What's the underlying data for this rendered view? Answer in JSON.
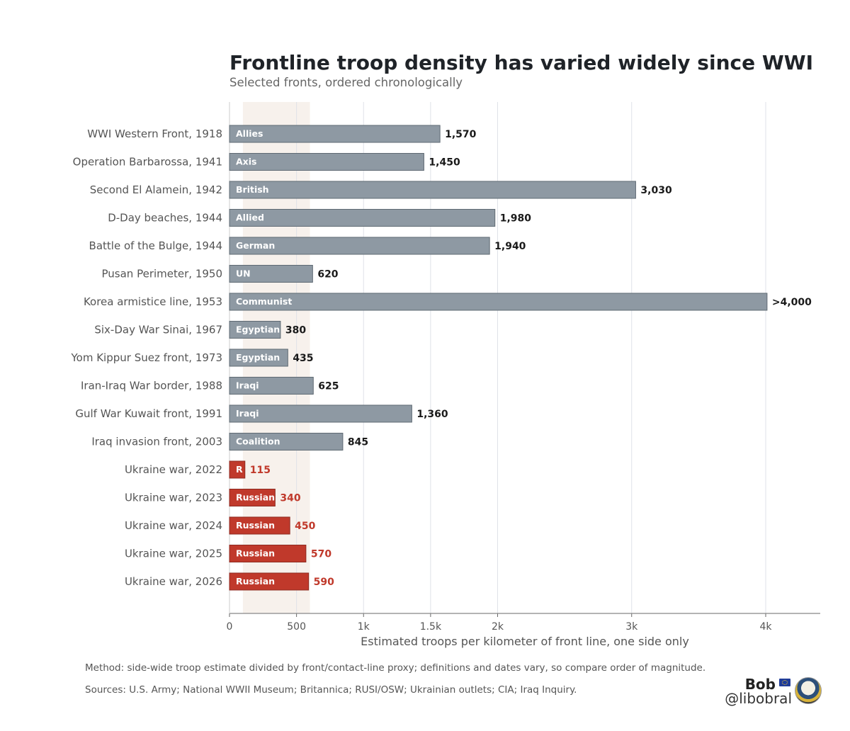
{
  "title": "Frontline troop density has varied widely since WWI",
  "subtitle": "Selected fronts, ordered chronologically",
  "footnotes": {
    "method": "Method: side-wide troop estimate divided by front/contact-line proxy; definitions and dates vary, so compare order of magnitude.",
    "sources": "Sources: U.S. Army; National WWII Museum; Britannica; RUSI/OSW; Ukrainian outlets; CIA; Iraq Inquiry."
  },
  "credit": {
    "name": "Bob",
    "handle": "@libobral",
    "flag_icon": "eu-flag-icon",
    "avatar_icon": "cartoon-duck-avatar"
  },
  "colors": {
    "historical_bar": "#8e99a3",
    "ukraine_bar": "#c0392b",
    "historical_value": "#1a1a1a",
    "ukraine_value": "#c0392b",
    "highlight_band": "#f7f1ec"
  },
  "chart_data": {
    "type": "bar",
    "orientation": "horizontal",
    "title": "Frontline troop density has varied widely since WWI",
    "subtitle": "Selected fronts, ordered chronologically",
    "xlabel": "Estimated troops per kilometer of front line, one side only",
    "ylabel": "",
    "xlim": [
      0,
      4400
    ],
    "xticks": [
      0,
      500,
      1000,
      1500,
      2000,
      3000,
      4000
    ],
    "xtick_labels": [
      "0",
      "500",
      "1k",
      "1.5k",
      "2k",
      "3k",
      "4k"
    ],
    "grid": "vertical",
    "highlight_band": [
      100,
      600
    ],
    "categories": [
      "WWI Western Front, 1918",
      "Operation Barbarossa, 1941",
      "Second El Alamein, 1942",
      "D-Day beaches, 1944",
      "Battle of the Bulge, 1944",
      "Pusan Perimeter, 1950",
      "Korea armistice line, 1953",
      "Six-Day War Sinai, 1967",
      "Yom Kippur Suez front, 1973",
      "Iran-Iraq War border, 1988",
      "Gulf War Kuwait front, 1991",
      "Iraq invasion front, 2003",
      "Ukraine war, 2022",
      "Ukraine war, 2023",
      "Ukraine war, 2024",
      "Ukraine war, 2025",
      "Ukraine war, 2026"
    ],
    "values": [
      1570,
      1450,
      3030,
      1980,
      1940,
      620,
      4010,
      380,
      435,
      625,
      1360,
      845,
      115,
      340,
      450,
      570,
      590
    ],
    "value_labels": [
      "1,570",
      "1,450",
      "3,030",
      "1,980",
      "1,940",
      "620",
      ">4,000",
      "380",
      "435",
      "625",
      "1,360",
      "845",
      "115",
      "340",
      "450",
      "570",
      "590"
    ],
    "side_labels": [
      "Allies",
      "Axis",
      "British",
      "Allied",
      "German",
      "UN",
      "Communist",
      "Egyptian",
      "Egyptian",
      "Iraqi",
      "Iraqi",
      "Coalition",
      "R",
      "Russian",
      "Russian",
      "Russian",
      "Russian"
    ],
    "groups": [
      "historical",
      "historical",
      "historical",
      "historical",
      "historical",
      "historical",
      "historical",
      "historical",
      "historical",
      "historical",
      "historical",
      "historical",
      "ukraine",
      "ukraine",
      "ukraine",
      "ukraine",
      "ukraine"
    ]
  }
}
